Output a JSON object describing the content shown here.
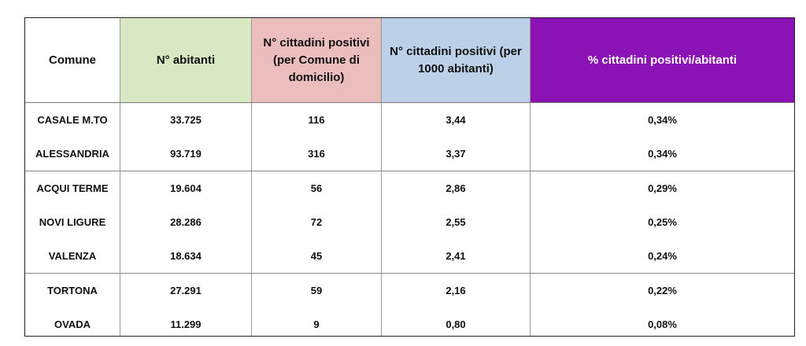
{
  "table": {
    "headers": {
      "comune": "Comune",
      "abitanti": "N° abitanti",
      "positivi": "N° cittadini positivi (per Comune di domicilio)",
      "per1000": "N° cittadini positivi (per 1000 abitanti)",
      "perc": "% cittadini positivi/abitanti"
    },
    "header_colors": {
      "abitanti": "#d8e8c3",
      "positivi": "#ebbebd",
      "per1000": "#bcd1e8",
      "perc": "#8b13b5"
    },
    "rows": [
      {
        "comune": "CASALE M.TO",
        "abitanti": "33.725",
        "positivi": "116",
        "per1000": "3,44",
        "perc": "0,34%"
      },
      {
        "comune": "ALESSANDRIA",
        "abitanti": "93.719",
        "positivi": "316",
        "per1000": "3,37",
        "perc": "0,34%"
      },
      {
        "comune": "ACQUI TERME",
        "abitanti": "19.604",
        "positivi": "56",
        "per1000": "2,86",
        "perc": "0,29%"
      },
      {
        "comune": "NOVI LIGURE",
        "abitanti": "28.286",
        "positivi": "72",
        "per1000": "2,55",
        "perc": "0,25%"
      },
      {
        "comune": "VALENZA",
        "abitanti": "18.634",
        "positivi": "45",
        "per1000": "2,41",
        "perc": "0,24%"
      },
      {
        "comune": "TORTONA",
        "abitanti": "27.291",
        "positivi": "59",
        "per1000": "2,16",
        "perc": "0,22%"
      },
      {
        "comune": "OVADA",
        "abitanti": "11.299",
        "positivi": "9",
        "per1000": "0,80",
        "perc": "0,08%"
      }
    ]
  }
}
